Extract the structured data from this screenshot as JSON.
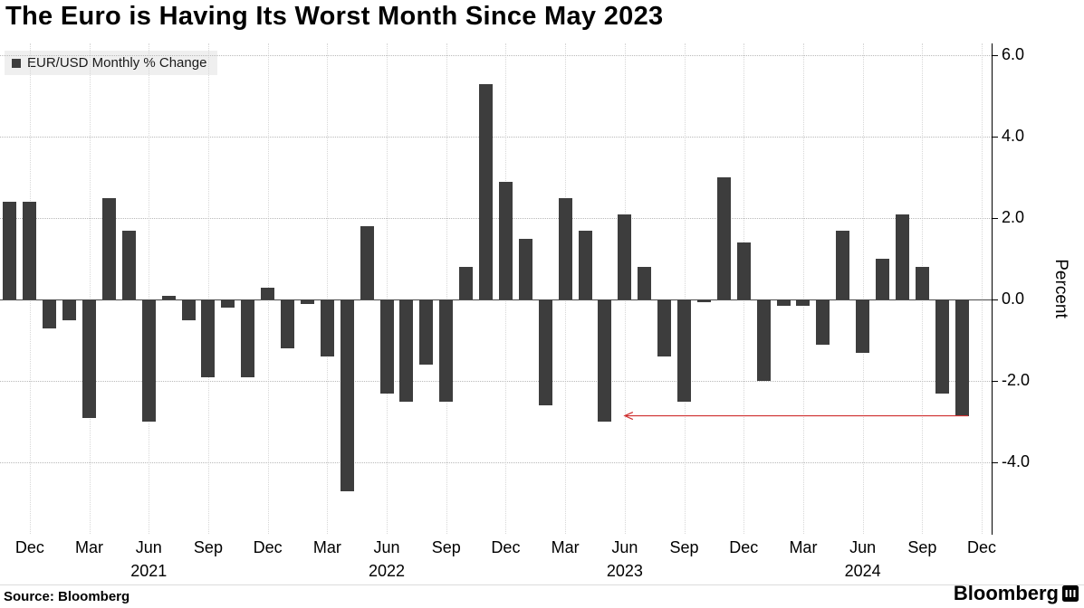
{
  "title": "The Euro is Having Its Worst Month Since May 2023",
  "legend": {
    "label": "EUR/USD Monthly % Change",
    "swatch_color": "#3d3d3d"
  },
  "source": "Source: Bloomberg",
  "brand": "Bloomberg",
  "chart_data": {
    "type": "bar",
    "title": "The Euro is Having Its Worst Month Since May 2023",
    "xlabel": "",
    "ylabel": "Percent",
    "ylim": [
      -5.75,
      6.3
    ],
    "yticks": [
      6.0,
      4.0,
      2.0,
      0.0,
      -2.0,
      -4.0
    ],
    "grid": "dotted",
    "legend_position": "top-left",
    "bar_color": "#3d3d3d",
    "arrow_color": "#cf2f2f",
    "months": [
      "Nov 2020",
      "Dec 2020",
      "Jan 2021",
      "Feb 2021",
      "Mar 2021",
      "Apr 2021",
      "May 2021",
      "Jun 2021",
      "Jul 2021",
      "Aug 2021",
      "Sep 2021",
      "Oct 2021",
      "Nov 2021",
      "Dec 2021",
      "Jan 2022",
      "Feb 2022",
      "Mar 2022",
      "Apr 2022",
      "May 2022",
      "Jun 2022",
      "Jul 2022",
      "Aug 2022",
      "Sep 2022",
      "Oct 2022",
      "Nov 2022",
      "Dec 2022",
      "Jan 2023",
      "Feb 2023",
      "Mar 2023",
      "Apr 2023",
      "May 2023",
      "Jun 2023",
      "Jul 2023",
      "Aug 2023",
      "Sep 2023",
      "Oct 2023",
      "Nov 2023",
      "Dec 2023",
      "Jan 2024",
      "Feb 2024",
      "Mar 2024",
      "Apr 2024",
      "May 2024",
      "Jun 2024",
      "Jul 2024",
      "Aug 2024",
      "Sep 2024",
      "Oct 2024",
      "Nov 2024"
    ],
    "values": [
      2.4,
      2.4,
      -0.7,
      -0.5,
      -2.9,
      2.5,
      1.7,
      -3.0,
      0.1,
      -0.5,
      -1.9,
      -0.2,
      -1.9,
      0.3,
      -1.2,
      -0.1,
      -1.4,
      -4.7,
      1.8,
      -2.3,
      -2.5,
      -1.6,
      -2.5,
      0.8,
      5.3,
      2.9,
      1.5,
      -2.6,
      2.5,
      1.7,
      -3.0,
      2.1,
      0.8,
      -1.4,
      -2.5,
      -0.05,
      3.0,
      1.4,
      -2.0,
      -0.15,
      -0.15,
      -1.1,
      1.7,
      -1.3,
      1.0,
      2.1,
      0.8,
      -2.3,
      -2.85
    ],
    "x_ticks": [
      {
        "label": "Dec",
        "slot": 1
      },
      {
        "label": "Mar",
        "slot": 4
      },
      {
        "label": "Jun",
        "slot": 7
      },
      {
        "label": "Sep",
        "slot": 10
      },
      {
        "label": "Dec",
        "slot": 13
      },
      {
        "label": "Mar",
        "slot": 16
      },
      {
        "label": "Jun",
        "slot": 19
      },
      {
        "label": "Sep",
        "slot": 22
      },
      {
        "label": "Dec",
        "slot": 25
      },
      {
        "label": "Mar",
        "slot": 28
      },
      {
        "label": "Jun",
        "slot": 31
      },
      {
        "label": "Sep",
        "slot": 34
      },
      {
        "label": "Dec",
        "slot": 37
      },
      {
        "label": "Mar",
        "slot": 40
      },
      {
        "label": "Jun",
        "slot": 43
      },
      {
        "label": "Sep",
        "slot": 46
      },
      {
        "label": "Dec",
        "slot": 49
      }
    ],
    "year_labels": [
      {
        "label": "2021",
        "slot": 7
      },
      {
        "label": "2022",
        "slot": 19
      },
      {
        "label": "2023",
        "slot": 31
      },
      {
        "label": "2024",
        "slot": 43
      }
    ],
    "annotation_arrow": {
      "from_month": "Nov 2024",
      "points_to": "May 2023",
      "at_value": -2.85
    }
  }
}
